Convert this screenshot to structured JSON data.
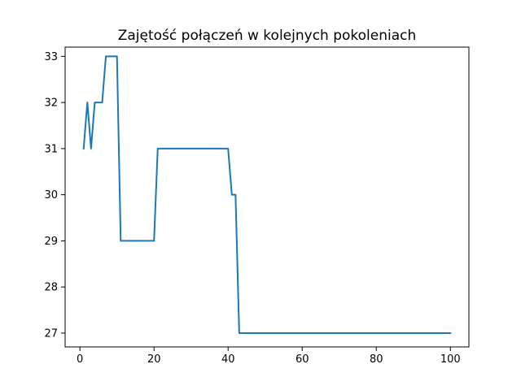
{
  "chart_data": {
    "type": "line",
    "title": "Zajętość połączeń w kolejnych pokoleniach",
    "xlabel": "",
    "ylabel": "",
    "xlim": [
      -4,
      105
    ],
    "ylim": [
      26.7,
      33.2
    ],
    "x_ticks": [
      0,
      20,
      40,
      60,
      80,
      100
    ],
    "y_ticks": [
      27,
      28,
      29,
      30,
      31,
      32,
      33
    ],
    "grid": false,
    "legend": "none",
    "series": [
      {
        "color": "#1f77b4",
        "x": [
          1,
          2,
          3,
          4,
          5,
          6,
          7,
          8,
          9,
          10,
          11,
          12,
          13,
          14,
          15,
          16,
          17,
          18,
          19,
          20,
          21,
          22,
          23,
          24,
          25,
          26,
          27,
          28,
          29,
          30,
          31,
          32,
          33,
          34,
          35,
          36,
          37,
          38,
          39,
          40,
          41,
          42,
          43,
          44,
          45,
          46,
          47,
          48,
          49,
          50,
          51,
          52,
          53,
          54,
          55,
          56,
          57,
          58,
          59,
          60,
          61,
          62,
          63,
          64,
          65,
          66,
          67,
          68,
          69,
          70,
          71,
          72,
          73,
          74,
          75,
          76,
          77,
          78,
          79,
          80,
          81,
          82,
          83,
          84,
          85,
          86,
          87,
          88,
          89,
          90,
          91,
          92,
          93,
          94,
          95,
          96,
          97,
          98,
          99,
          100
        ],
        "y": [
          31,
          32,
          31,
          32,
          32,
          32,
          33,
          33,
          33,
          33,
          29,
          29,
          29,
          29,
          29,
          29,
          29,
          29,
          29,
          29,
          31,
          31,
          31,
          31,
          31,
          31,
          31,
          31,
          31,
          31,
          31,
          31,
          31,
          31,
          31,
          31,
          31,
          31,
          31,
          31,
          30,
          30,
          27,
          27,
          27,
          27,
          27,
          27,
          27,
          27,
          27,
          27,
          27,
          27,
          27,
          27,
          27,
          27,
          27,
          27,
          27,
          27,
          27,
          27,
          27,
          27,
          27,
          27,
          27,
          27,
          27,
          27,
          27,
          27,
          27,
          27,
          27,
          27,
          27,
          27,
          27,
          27,
          27,
          27,
          27,
          27,
          27,
          27,
          27,
          27,
          27,
          27,
          27,
          27,
          27,
          27,
          27,
          27,
          27,
          27
        ]
      }
    ]
  }
}
